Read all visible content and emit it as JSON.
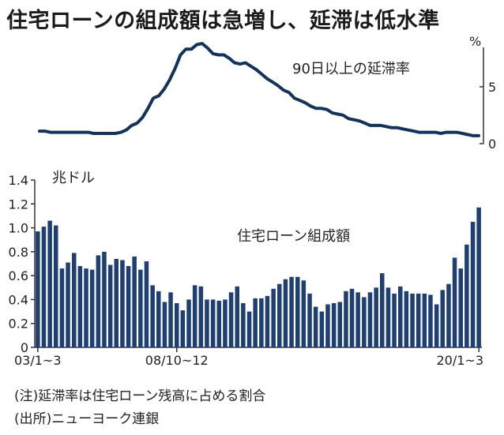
{
  "title": "住宅ローンの組成額は急増し、延滞は低水準",
  "notes": {
    "note1": "(注)延滞率は住宅ローン残高に占める割合",
    "note2": "(出所)ニューヨーク連銀"
  },
  "colors": {
    "line": "#13335a",
    "bar": "#1f3f73",
    "axis": "#333333",
    "background": "#ffffff"
  },
  "chart_data": [
    {
      "type": "line",
      "series_label": "90日以上の延滞率",
      "ylabel": "%",
      "yticks": [
        0,
        5
      ],
      "ylim": [
        0,
        9.5
      ],
      "grid": false,
      "values": [
        1.1,
        1.1,
        1.0,
        1.0,
        1.0,
        1.0,
        1.0,
        1.0,
        1.0,
        1.0,
        0.9,
        0.9,
        0.9,
        0.9,
        0.9,
        1.0,
        1.2,
        1.6,
        1.8,
        2.3,
        3.1,
        4.0,
        4.2,
        4.8,
        5.6,
        6.6,
        7.8,
        8.3,
        8.3,
        8.7,
        8.8,
        8.4,
        7.9,
        7.8,
        7.8,
        7.5,
        7.1,
        7.0,
        7.1,
        6.8,
        6.5,
        6.1,
        5.7,
        5.4,
        5.1,
        4.7,
        4.5,
        4.0,
        3.8,
        3.6,
        3.3,
        3.1,
        3.1,
        3.0,
        2.7,
        2.6,
        2.5,
        2.2,
        2.1,
        2.0,
        1.8,
        1.6,
        1.6,
        1.6,
        1.5,
        1.4,
        1.4,
        1.3,
        1.2,
        1.1,
        1.0,
        1.0,
        1.0,
        1.0,
        0.9,
        1.0,
        1.0,
        1.0,
        0.9,
        0.8,
        0.7,
        0.7
      ]
    },
    {
      "type": "bar",
      "series_label": "住宅ローン組成額",
      "ylabel": "兆ドル",
      "ylim": [
        0,
        1.4
      ],
      "yticks": [
        "0",
        "0.2",
        "0.4",
        "0.6",
        "0.8",
        "1.0",
        "1.2",
        "1.4"
      ],
      "xtick_labels": [
        "03/1~3",
        "08/10~12",
        "20/1~3"
      ],
      "grid": false,
      "values": [
        0.97,
        1.01,
        1.06,
        1.02,
        0.66,
        0.71,
        0.79,
        0.68,
        0.66,
        0.65,
        0.77,
        0.8,
        0.69,
        0.74,
        0.73,
        0.68,
        0.76,
        0.65,
        0.72,
        0.52,
        0.47,
        0.38,
        0.46,
        0.37,
        0.31,
        0.4,
        0.52,
        0.51,
        0.4,
        0.4,
        0.39,
        0.4,
        0.46,
        0.51,
        0.37,
        0.3,
        0.41,
        0.41,
        0.43,
        0.49,
        0.53,
        0.57,
        0.59,
        0.59,
        0.56,
        0.45,
        0.34,
        0.3,
        0.36,
        0.37,
        0.38,
        0.47,
        0.49,
        0.46,
        0.42,
        0.46,
        0.5,
        0.62,
        0.5,
        0.45,
        0.51,
        0.47,
        0.45,
        0.45,
        0.45,
        0.44,
        0.36,
        0.48,
        0.53,
        0.75,
        0.66,
        0.86,
        1.05,
        1.17
      ]
    }
  ]
}
